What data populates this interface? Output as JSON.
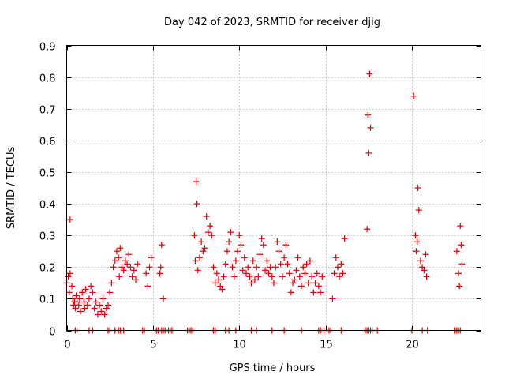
{
  "chart_data": {
    "type": "scatter",
    "title": "Day 042 of 2023, SRMTID for receiver djig",
    "xlabel": "GPS time / hours",
    "ylabel": "SRMTID / TECUs",
    "xlim": [
      0,
      24
    ],
    "ylim": [
      0,
      0.9
    ],
    "xticks": [
      0,
      5,
      10,
      15,
      20
    ],
    "yticks": [
      0,
      0.1,
      0.2,
      0.3,
      0.4,
      0.5,
      0.6,
      0.7,
      0.8,
      0.9
    ],
    "xtick_labels": [
      "0",
      "5",
      "10",
      "15",
      "20"
    ],
    "ytick_labels": [
      "0",
      "0.1",
      "0.2",
      "0.3",
      "0.4",
      "0.5",
      "0.6",
      "0.7",
      "0.8",
      "0.9"
    ],
    "grid": true,
    "marker": "+",
    "color": "#e00000",
    "series": [
      {
        "name": "SRMTID",
        "x": [
          0.0,
          0.1,
          0.15,
          0.2,
          0.3,
          0.35,
          0.4,
          0.45,
          0.5,
          0.55,
          0.6,
          0.7,
          0.75,
          0.8,
          0.9,
          1.0,
          1.05,
          1.1,
          1.2,
          1.3,
          1.4,
          1.5,
          1.6,
          1.7,
          1.8,
          1.9,
          2.0,
          2.1,
          2.2,
          2.3,
          2.4,
          2.5,
          2.6,
          2.7,
          2.8,
          2.9,
          3.0,
          3.05,
          3.1,
          3.2,
          3.3,
          3.4,
          3.5,
          3.6,
          3.7,
          3.8,
          3.9,
          4.0,
          4.1,
          4.6,
          4.7,
          4.8,
          4.9,
          5.4,
          5.45,
          5.5,
          5.6,
          7.4,
          7.45,
          7.5,
          7.55,
          7.6,
          7.7,
          7.8,
          7.9,
          8.0,
          8.1,
          8.2,
          8.3,
          8.4,
          8.5,
          8.6,
          8.7,
          8.8,
          8.9,
          9.0,
          9.1,
          9.2,
          9.3,
          9.4,
          9.5,
          9.6,
          9.7,
          9.8,
          9.9,
          10.0,
          10.1,
          10.2,
          10.3,
          10.4,
          10.5,
          10.6,
          10.7,
          10.8,
          10.9,
          11.0,
          11.1,
          11.2,
          11.3,
          11.4,
          11.5,
          11.6,
          11.7,
          11.8,
          11.9,
          12.0,
          12.1,
          12.2,
          12.3,
          12.4,
          12.5,
          12.6,
          12.7,
          12.8,
          12.9,
          13.0,
          13.1,
          13.2,
          13.3,
          13.4,
          13.5,
          13.6,
          13.7,
          13.8,
          13.9,
          14.0,
          14.1,
          14.2,
          14.3,
          14.4,
          14.5,
          14.6,
          14.7,
          14.8,
          15.4,
          15.5,
          15.6,
          15.7,
          15.8,
          15.9,
          16.0,
          16.1,
          17.4,
          17.45,
          17.5,
          17.55,
          17.6,
          20.1,
          20.2,
          20.25,
          20.3,
          20.35,
          20.4,
          20.5,
          20.6,
          20.7,
          20.8,
          20.85,
          22.6,
          22.7,
          22.75,
          22.8,
          22.85,
          22.9,
          0.2,
          0.5,
          0.6,
          1.3,
          1.5,
          2.4,
          2.5,
          2.8,
          3.0,
          3.1,
          3.3,
          4.4,
          4.5,
          5.2,
          5.3,
          5.5,
          5.6,
          5.7,
          5.9,
          6.0,
          6.1,
          7.0,
          7.1,
          7.2,
          7.3,
          8.5,
          8.6,
          9.2,
          9.4,
          9.8,
          10.7,
          11.0,
          11.9,
          12.6,
          13.6,
          14.6,
          14.7,
          14.9,
          15.2,
          15.3,
          15.9,
          17.3,
          17.4,
          17.5,
          17.6,
          17.7,
          18.0,
          20.0,
          20.6,
          20.9,
          22.5,
          22.6,
          22.7,
          22.8
        ],
        "y": [
          0.15,
          0.17,
          0.12,
          0.18,
          0.14,
          0.1,
          0.08,
          0.09,
          0.07,
          0.11,
          0.09,
          0.08,
          0.1,
          0.06,
          0.12,
          0.09,
          0.07,
          0.13,
          0.08,
          0.1,
          0.14,
          0.12,
          0.07,
          0.09,
          0.05,
          0.08,
          0.06,
          0.1,
          0.05,
          0.07,
          0.08,
          0.12,
          0.15,
          0.2,
          0.22,
          0.25,
          0.23,
          0.17,
          0.26,
          0.2,
          0.19,
          0.22,
          0.21,
          0.24,
          0.2,
          0.17,
          0.19,
          0.16,
          0.21,
          0.18,
          0.14,
          0.2,
          0.23,
          0.18,
          0.2,
          0.27,
          0.1,
          0.3,
          0.22,
          0.47,
          0.4,
          0.19,
          0.23,
          0.28,
          0.25,
          0.26,
          0.36,
          0.31,
          0.33,
          0.3,
          0.2,
          0.15,
          0.18,
          0.16,
          0.14,
          0.13,
          0.17,
          0.21,
          0.25,
          0.28,
          0.31,
          0.2,
          0.17,
          0.22,
          0.25,
          0.3,
          0.27,
          0.19,
          0.23,
          0.18,
          0.2,
          0.17,
          0.15,
          0.22,
          0.16,
          0.2,
          0.17,
          0.24,
          0.29,
          0.27,
          0.19,
          0.22,
          0.18,
          0.2,
          0.17,
          0.15,
          0.2,
          0.28,
          0.25,
          0.21,
          0.17,
          0.23,
          0.27,
          0.21,
          0.18,
          0.12,
          0.15,
          0.16,
          0.19,
          0.23,
          0.17,
          0.14,
          0.2,
          0.18,
          0.21,
          0.15,
          0.22,
          0.17,
          0.12,
          0.15,
          0.18,
          0.14,
          0.12,
          0.17,
          0.1,
          0.18,
          0.23,
          0.2,
          0.17,
          0.21,
          0.18,
          0.29,
          0.32,
          0.68,
          0.56,
          0.81,
          0.64,
          0.74,
          0.3,
          0.25,
          0.28,
          0.45,
          0.38,
          0.22,
          0.2,
          0.19,
          0.24,
          0.17,
          0.25,
          0.18,
          0.14,
          0.33,
          0.27,
          0.21,
          0.35,
          0.0,
          0.0,
          0.0,
          0.0,
          0.0,
          0.0,
          0.0,
          0.0,
          0.0,
          0.0,
          0.0,
          0.0,
          0.0,
          0.0,
          0.0,
          0.0,
          0.0,
          0.0,
          0.0,
          0.0,
          0.0,
          0.0,
          0.0,
          0.0,
          0.0,
          0.0,
          0.0,
          0.0,
          0.0,
          0.0,
          0.0,
          0.0,
          0.0,
          0.0,
          0.0,
          0.0,
          0.0,
          0.0,
          0.0,
          0.0,
          0.0,
          0.0,
          0.0,
          0.0,
          0.0,
          0.0,
          0.0,
          0.0,
          0.0,
          0.0,
          0.0,
          0.0,
          0.0
        ]
      }
    ]
  }
}
